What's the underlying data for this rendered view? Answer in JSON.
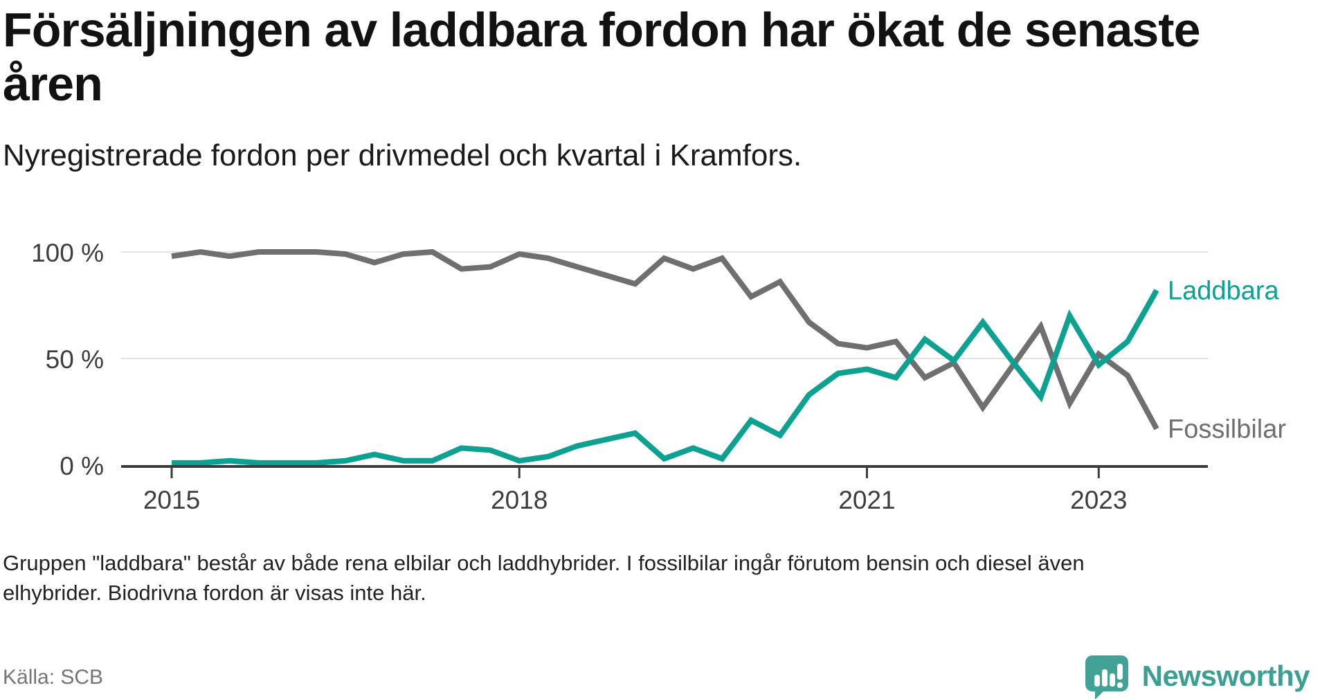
{
  "title_lines": [
    "Försäljningen av laddbara fordon har ökat de senaste",
    "åren"
  ],
  "subtitle": "Nyregistrerade fordon per drivmedel och kvartal i Kramfors.",
  "chart_data": {
    "type": "line",
    "categories": [
      "2015 Q1",
      "2015 Q2",
      "2015 Q3",
      "2015 Q4",
      "2016 Q1",
      "2016 Q2",
      "2016 Q3",
      "2016 Q4",
      "2017 Q1",
      "2017 Q2",
      "2017 Q3",
      "2017 Q4",
      "2018 Q1",
      "2018 Q2",
      "2018 Q3",
      "2018 Q4",
      "2019 Q1",
      "2019 Q2",
      "2019 Q3",
      "2019 Q4",
      "2020 Q1",
      "2020 Q2",
      "2020 Q3",
      "2020 Q4",
      "2021 Q1",
      "2021 Q2",
      "2021 Q3",
      "2021 Q4",
      "2022 Q1",
      "2022 Q2",
      "2022 Q3",
      "2022 Q4",
      "2023 Q1",
      "2023 Q2",
      "2023 Q3"
    ],
    "series": [
      {
        "name": "Fossilbilar",
        "color": "#6F6F6F",
        "values": [
          98,
          100,
          98,
          100,
          100,
          100,
          99,
          95,
          99,
          100,
          92,
          93,
          99,
          97,
          93,
          89,
          85,
          97,
          92,
          97,
          79,
          86,
          67,
          57,
          55,
          58,
          41,
          48,
          27,
          46,
          65,
          29,
          52,
          42,
          17
        ]
      },
      {
        "name": "Laddbara",
        "color": "#0CA191",
        "values": [
          1,
          1,
          2,
          1,
          1,
          1,
          2,
          5,
          2,
          2,
          8,
          7,
          2,
          4,
          9,
          12,
          15,
          3,
          8,
          3,
          21,
          14,
          33,
          43,
          45,
          41,
          59,
          49,
          67,
          49,
          32,
          70,
          47,
          58,
          82
        ]
      }
    ],
    "ylim": [
      0,
      100
    ],
    "yticks": [
      {
        "value": 100,
        "label": "100 %"
      },
      {
        "value": 50,
        "label": "50 %"
      },
      {
        "value": 0,
        "label": "0 %"
      }
    ],
    "xticks": [
      {
        "index": 0,
        "label": "2015"
      },
      {
        "index": 12,
        "label": "2018"
      },
      {
        "index": 24,
        "label": "2021"
      },
      {
        "index": 32,
        "label": "2023"
      }
    ],
    "grid": true,
    "legend_position": "end-of-line labels",
    "title": "Försäljningen av laddbara fordon har ökat de senaste åren",
    "xlabel": "",
    "ylabel": ""
  },
  "footnote_lines": [
    "Gruppen \"laddbara\" består av både rena elbilar och laddhybrider. I fossilbilar ingår förutom bensin och diesel även",
    "elhybrider. Biodrivna fordon är visas inte här."
  ],
  "source": "Källa: SCB",
  "brand": {
    "name": "Newsworthy",
    "icon": "bar-chart-speech-bubble-icon",
    "color": "#42A295"
  },
  "colors": {
    "laddbara": "#0CA191",
    "fossilbilar": "#6F6F6F",
    "gridline": "#E2E2E2",
    "axis": "#3B3B3B",
    "tick_text": "#3D3D3D"
  }
}
